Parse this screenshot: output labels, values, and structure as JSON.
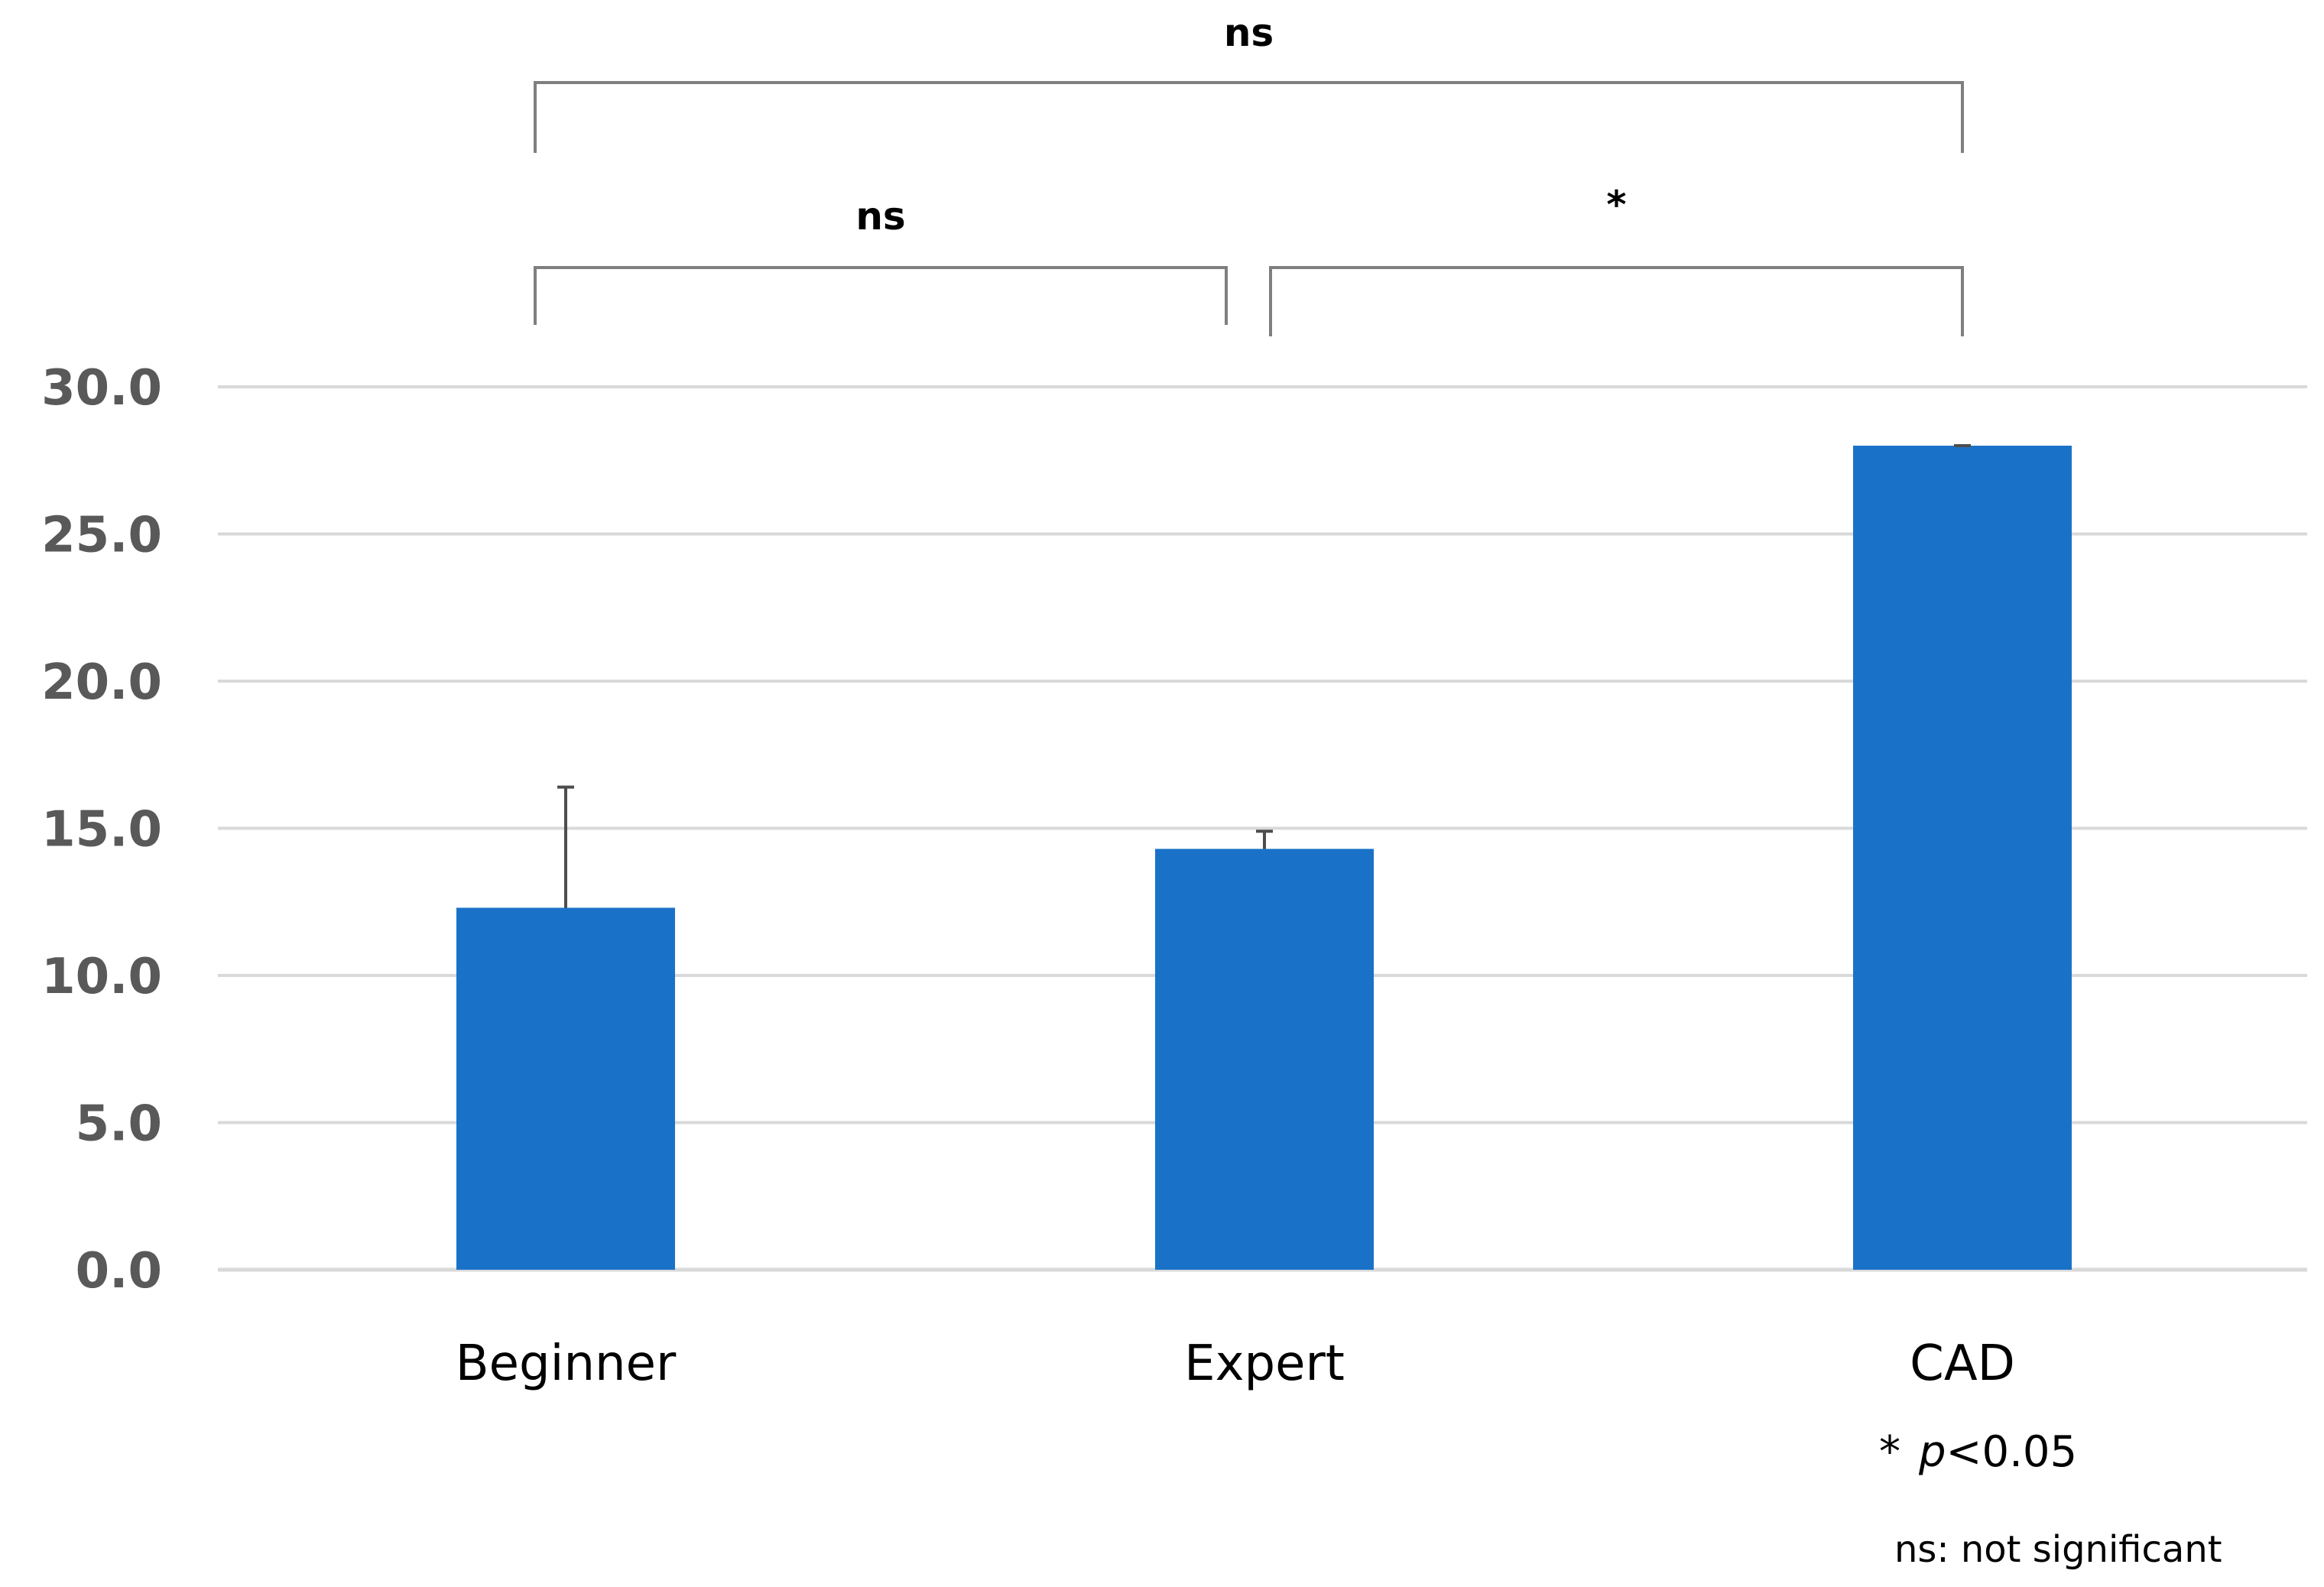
{
  "chart_data": {
    "type": "bar",
    "categories": [
      "Beginner",
      "Expert",
      "CAD"
    ],
    "values": [
      12.3,
      14.3,
      28.0
    ],
    "error_bars": [
      4.1,
      0.6,
      0.0
    ],
    "ylim": [
      0,
      30
    ],
    "yticks": [
      "0.0",
      "5.0",
      "10.0",
      "15.0",
      "20.0",
      "25.0",
      "30.0"
    ],
    "ytick_values": [
      0,
      5,
      10,
      15,
      20,
      25,
      30
    ],
    "grid": true,
    "bar_color": "#1a72c8",
    "grid_color": "#d9d9d9",
    "comparisons": [
      {
        "from": "Beginner",
        "to": "CAD",
        "label": "ns"
      },
      {
        "from": "Beginner",
        "to": "Expert",
        "label": "ns"
      },
      {
        "from": "Expert",
        "to": "CAD",
        "label": "*"
      }
    ],
    "notes": {
      "star": "*",
      "p_italic": "p",
      "p_rest": "<0.05",
      "ns_note": "ns: not significant"
    }
  }
}
